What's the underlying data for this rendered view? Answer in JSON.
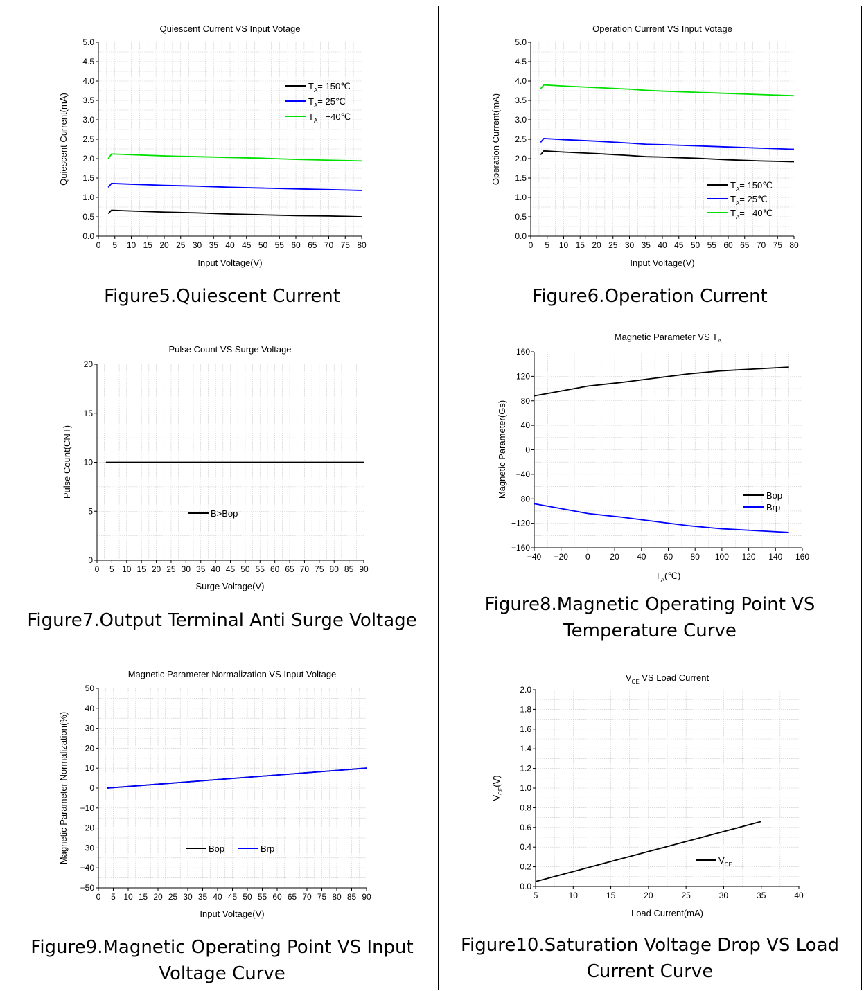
{
  "figures": [
    {
      "caption": "Figure5.Quiescent Current",
      "chart_data": {
        "type": "line",
        "title": "Quiescent Current VS Input Votage",
        "xlabel": "Input Voltage(V)",
        "ylabel": "Quiescent Current(mA)",
        "xlim": [
          0,
          80
        ],
        "ylim": [
          0,
          5
        ],
        "xticks": [
          0,
          5,
          10,
          15,
          20,
          25,
          30,
          35,
          40,
          45,
          50,
          55,
          60,
          65,
          70,
          75,
          80
        ],
        "yticks": [
          0,
          0.5,
          1,
          1.5,
          2,
          2.5,
          3,
          3.5,
          4,
          4.5,
          5
        ],
        "ytick_decimals": 1,
        "grid": true,
        "legend_position": "top-right",
        "series": [
          {
            "name": "TA= 150℃",
            "label_main": "T",
            "label_sub": "A",
            "label_rest": "= 150℃",
            "color": "#000000",
            "x": [
              3,
              4,
              10,
              20,
              30,
              40,
              50,
              60,
              70,
              80
            ],
            "y": [
              0.58,
              0.67,
              0.65,
              0.62,
              0.6,
              0.57,
              0.55,
              0.53,
              0.52,
              0.5
            ]
          },
          {
            "name": "TA= 25℃",
            "label_main": "T",
            "label_sub": "A",
            "label_rest": "= 25℃",
            "color": "#0000ff",
            "x": [
              3,
              4,
              10,
              20,
              30,
              40,
              50,
              60,
              70,
              80
            ],
            "y": [
              1.26,
              1.36,
              1.34,
              1.31,
              1.29,
              1.26,
              1.24,
              1.22,
              1.2,
              1.18
            ]
          },
          {
            "name": "TA= −40℃",
            "label_main": "T",
            "label_sub": "A",
            "label_rest": "= −40℃",
            "color": "#00e000",
            "x": [
              3,
              4,
              10,
              20,
              30,
              40,
              50,
              60,
              70,
              80
            ],
            "y": [
              2.0,
              2.12,
              2.1,
              2.07,
              2.05,
              2.03,
              2.01,
              1.98,
              1.96,
              1.94
            ]
          }
        ]
      }
    },
    {
      "caption": "Figure6.Operation Current",
      "chart_data": {
        "type": "line",
        "title": "Operation Current VS Input Votage",
        "xlabel": "Input Voltage(V)",
        "ylabel": "Operation Current(mA)",
        "xlim": [
          0,
          80
        ],
        "ylim": [
          0,
          5
        ],
        "xticks": [
          0,
          5,
          10,
          15,
          20,
          25,
          30,
          35,
          40,
          45,
          50,
          55,
          60,
          65,
          70,
          75,
          80
        ],
        "yticks": [
          0,
          0.5,
          1,
          1.5,
          2,
          2.5,
          3,
          3.5,
          4,
          4.5,
          5
        ],
        "ytick_decimals": 1,
        "grid": true,
        "legend_position": "bottom-right",
        "series": [
          {
            "name": "TA= 150℃",
            "label_main": "T",
            "label_sub": "A",
            "label_rest": "= 150℃",
            "color": "#000000",
            "x": [
              3,
              4,
              10,
              20,
              30,
              35,
              40,
              50,
              60,
              70,
              80
            ],
            "y": [
              2.1,
              2.2,
              2.17,
              2.13,
              2.08,
              2.05,
              2.04,
              2.01,
              1.97,
              1.94,
              1.92
            ]
          },
          {
            "name": "TA= 25℃",
            "label_main": "T",
            "label_sub": "A",
            "label_rest": "= 25℃",
            "color": "#0000ff",
            "x": [
              3,
              4,
              10,
              20,
              30,
              35,
              40,
              50,
              60,
              70,
              80
            ],
            "y": [
              2.42,
              2.52,
              2.49,
              2.45,
              2.4,
              2.37,
              2.36,
              2.33,
              2.3,
              2.27,
              2.24
            ]
          },
          {
            "name": "TA= −40℃",
            "label_main": "T",
            "label_sub": "A",
            "label_rest": "= −40℃",
            "color": "#00e000",
            "x": [
              3,
              4,
              10,
              20,
              30,
              35,
              40,
              50,
              60,
              70,
              80
            ],
            "y": [
              3.8,
              3.9,
              3.87,
              3.83,
              3.79,
              3.76,
              3.74,
              3.71,
              3.68,
              3.65,
              3.62
            ]
          }
        ]
      }
    },
    {
      "caption": "Figure7.Output Terminal Anti Surge Voltage",
      "chart_data": {
        "type": "line",
        "title": "Pulse Count VS Surge Voltage",
        "xlabel": "Surge Voltage(V)",
        "ylabel": "Pulse Count(CNT)",
        "xlim": [
          0,
          90
        ],
        "ylim": [
          0,
          20
        ],
        "xticks": [
          0,
          5,
          10,
          15,
          20,
          25,
          30,
          35,
          40,
          45,
          50,
          55,
          60,
          65,
          70,
          75,
          80,
          85,
          90
        ],
        "yticks": [
          0,
          5,
          10,
          15,
          20
        ],
        "ytick_decimals": 0,
        "grid": true,
        "legend_position": "center",
        "series": [
          {
            "name": "B>Bop",
            "label_main": "B>Bop",
            "label_sub": "",
            "label_rest": "",
            "color": "#000000",
            "x": [
              3,
              90
            ],
            "y": [
              10,
              10
            ]
          }
        ]
      }
    },
    {
      "caption_lines": [
        "Figure8.Magnetic Operating Point VS",
        "Temperature Curve"
      ],
      "chart_data": {
        "type": "line",
        "title_main": "Magnetic Parameter VS T",
        "title_sub": "A",
        "xlabel_main": "T",
        "xlabel_sub": "A",
        "xlabel_rest": "(℃)",
        "ylabel": "Magnetic Parameter(Gs)",
        "xlim": [
          -40,
          160
        ],
        "ylim": [
          -160,
          160
        ],
        "xticks": [
          -40,
          -20,
          0,
          20,
          40,
          60,
          80,
          100,
          120,
          140,
          160
        ],
        "yticks": [
          -160,
          -120,
          -80,
          -40,
          0,
          40,
          80,
          120,
          160
        ],
        "ytick_decimals": 0,
        "grid": true,
        "legend_position": "right",
        "series": [
          {
            "name": "Bop",
            "label_main": "Bop",
            "label_sub": "",
            "label_rest": "",
            "color": "#000000",
            "x": [
              -40,
              -20,
              0,
              25,
              50,
              75,
              100,
              125,
              150
            ],
            "y": [
              88,
              96,
              104,
              110,
              117,
              124,
              129,
              132,
              135
            ]
          },
          {
            "name": "Brp",
            "label_main": "Brp",
            "label_sub": "",
            "label_rest": "",
            "color": "#0000ff",
            "x": [
              -40,
              -20,
              0,
              25,
              50,
              75,
              100,
              125,
              150
            ],
            "y": [
              -88,
              -96,
              -104,
              -110,
              -117,
              -124,
              -129,
              -132,
              -135
            ]
          }
        ]
      }
    },
    {
      "caption_lines": [
        "Figure9.Magnetic Operating Point VS Input",
        "Voltage Curve"
      ],
      "chart_data": {
        "type": "line",
        "title": "Magnetic Parameter Normalization VS Input Voltage",
        "xlabel": "Input Voltage(V)",
        "ylabel": "Magnetic Parameter Normalization(%)",
        "xlim": [
          0,
          90
        ],
        "ylim": [
          -50,
          50
        ],
        "xticks": [
          0,
          5,
          10,
          15,
          20,
          25,
          30,
          35,
          40,
          45,
          50,
          55,
          60,
          65,
          70,
          75,
          80,
          85,
          90
        ],
        "yticks": [
          -50,
          -40,
          -30,
          -20,
          -10,
          0,
          10,
          20,
          30,
          40,
          50
        ],
        "ytick_decimals": 0,
        "grid": true,
        "legend_position": "center-horizontal",
        "series": [
          {
            "name": "Bop",
            "label_main": "Bop",
            "label_sub": "",
            "label_rest": "",
            "color": "#000000",
            "x": [
              3,
              90
            ],
            "y": [
              0,
              10
            ]
          },
          {
            "name": "Brp",
            "label_main": "Brp",
            "label_sub": "",
            "label_rest": "",
            "color": "#0000ff",
            "x": [
              3,
              90
            ],
            "y": [
              0,
              10
            ]
          }
        ]
      }
    },
    {
      "caption_lines": [
        "Figure10.Saturation Voltage Drop VS Load",
        "Current Curve"
      ],
      "chart_data": {
        "type": "line",
        "title_main": "V",
        "title_sub": "CE",
        "title_rest": " VS Load Current",
        "xlabel": "Load Current(mA)",
        "ylabel_main": "V",
        "ylabel_sub": "CE",
        "ylabel_rest": "(V)",
        "xlim": [
          5,
          40
        ],
        "ylim": [
          0,
          2
        ],
        "xticks": [
          5,
          10,
          15,
          20,
          25,
          30,
          35,
          40
        ],
        "yticks": [
          0,
          0.2,
          0.4,
          0.6,
          0.8,
          1.0,
          1.2,
          1.4,
          1.6,
          1.8,
          2.0
        ],
        "ytick_decimals": 1,
        "grid": true,
        "legend_position": "center-right",
        "series": [
          {
            "name": "VCE",
            "label_main": "V",
            "label_sub": "CE",
            "label_rest": "",
            "color": "#000000",
            "x": [
              5,
              35
            ],
            "y": [
              0.05,
              0.66
            ]
          }
        ]
      }
    }
  ]
}
